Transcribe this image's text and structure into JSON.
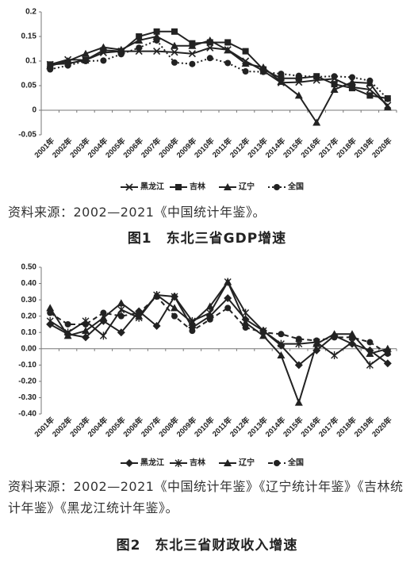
{
  "chart_data": [
    {
      "type": "line",
      "categories": [
        "2001年",
        "2002年",
        "2003年",
        "2004年",
        "2005年",
        "2006年",
        "2007年",
        "2008年",
        "2009年",
        "2010年",
        "2011年",
        "2012年",
        "2013年",
        "2014年",
        "2015年",
        "2016年",
        "2017年",
        "2018年",
        "2019年",
        "2020年"
      ],
      "ylim": [
        -0.05,
        0.2
      ],
      "yticks": [
        -0.05,
        0,
        0.05,
        0.1,
        0.15,
        0.2
      ],
      "grid": false,
      "series": [
        {
          "name": "黑龙江",
          "color": "#222222",
          "marker": "x",
          "dash": "solid",
          "values": [
            0.093,
            0.103,
            0.102,
            0.117,
            0.12,
            0.12,
            0.12,
            0.118,
            0.115,
            0.127,
            0.123,
            0.1,
            0.08,
            0.056,
            0.057,
            0.061,
            0.064,
            0.047,
            0.042,
            0.01
          ]
        },
        {
          "name": "吉林",
          "color": "#222222",
          "marker": "square",
          "dash": "solid",
          "values": [
            0.093,
            0.095,
            0.102,
            0.122,
            0.12,
            0.15,
            0.16,
            0.16,
            0.136,
            0.138,
            0.138,
            0.12,
            0.083,
            0.065,
            0.065,
            0.069,
            0.053,
            0.045,
            0.03,
            0.024
          ]
        },
        {
          "name": "辽宁",
          "color": "#222222",
          "marker": "triangle",
          "dash": "solid",
          "values": [
            0.09,
            0.1,
            0.115,
            0.128,
            0.123,
            0.142,
            0.15,
            0.131,
            0.131,
            0.142,
            0.122,
            0.095,
            0.087,
            0.058,
            0.03,
            -0.025,
            0.042,
            0.057,
            0.055,
            0.006
          ]
        },
        {
          "name": "全国",
          "color": "#222222",
          "marker": "circle",
          "dash": "dotted",
          "values": [
            0.083,
            0.091,
            0.1,
            0.101,
            0.114,
            0.127,
            0.142,
            0.097,
            0.094,
            0.106,
            0.096,
            0.079,
            0.078,
            0.074,
            0.07,
            0.068,
            0.069,
            0.067,
            0.06,
            0.023
          ]
        }
      ]
    },
    {
      "type": "line",
      "categories": [
        "2001年",
        "2002年",
        "2003年",
        "2004年",
        "2005年",
        "2006年",
        "2007年",
        "2008年",
        "2009年",
        "2010年",
        "2011年",
        "2012年",
        "2013年",
        "2014年",
        "2015年",
        "2016年",
        "2017年",
        "2018年",
        "2019年",
        "2020年"
      ],
      "ylim": [
        -0.4,
        0.5
      ],
      "yticks": [
        {
          "value": -0.4,
          "label": "-0.40"
        },
        {
          "value": -0.3,
          "label": "-0.30"
        },
        {
          "value": -0.2,
          "label": "-0.20"
        },
        {
          "value": -0.1,
          "label": "-0.10"
        },
        {
          "value": 0,
          "label": "0.00"
        },
        {
          "value": 0.1,
          "label": "0.10"
        },
        {
          "value": 0.2,
          "label": "0.20"
        },
        {
          "value": 0.3,
          "label": "0.30"
        },
        {
          "value": 0.4,
          "label": "0.40"
        },
        {
          "value": 0.5,
          "label": "0.50"
        }
      ],
      "grid": false,
      "series": [
        {
          "name": "黑龙江",
          "color": "#222222",
          "marker": "diamond",
          "dash": "solid",
          "values": [
            0.15,
            0.09,
            0.07,
            0.17,
            0.1,
            0.23,
            0.14,
            0.32,
            0.13,
            0.2,
            0.31,
            0.18,
            0.11,
            0.02,
            -0.1,
            -0.01,
            0.08,
            0.03,
            -0.01,
            -0.09
          ]
        },
        {
          "name": "吉林",
          "color": "#222222",
          "marker": "star",
          "dash": "solid",
          "values": [
            0.17,
            0.1,
            0.17,
            0.08,
            0.24,
            0.19,
            0.33,
            0.32,
            0.17,
            0.22,
            0.41,
            0.22,
            0.11,
            0.03,
            0.03,
            0.04,
            -0.04,
            0.04,
            -0.1,
            -0.02
          ]
        },
        {
          "name": "辽宁",
          "color": "#222222",
          "marker": "triangle",
          "dash": "solid",
          "values": [
            0.25,
            0.08,
            0.11,
            0.19,
            0.28,
            0.2,
            0.33,
            0.25,
            0.16,
            0.26,
            0.41,
            0.16,
            0.08,
            -0.04,
            -0.33,
            0.03,
            0.09,
            0.09,
            -0.03,
            0
          ]
        },
        {
          "name": "全国",
          "color": "#222222",
          "marker": "circle",
          "dash": "dashed",
          "values": [
            0.22,
            0.15,
            0.15,
            0.22,
            0.2,
            0.22,
            0.32,
            0.2,
            0.11,
            0.18,
            0.25,
            0.13,
            0.1,
            0.09,
            0.06,
            0.05,
            0.07,
            0.07,
            0.04,
            -0.03
          ]
        }
      ]
    }
  ],
  "document": {
    "source_1": "资料来源：2002—2021《中国统计年鉴》。",
    "caption_1": "图1　东北三省GDP增速",
    "source_2": "资料来源：2002—2021《中国统计年鉴》《辽宁统计年鉴》《吉林统计年鉴》《黑龙江统计年鉴》。",
    "caption_2": "图2　东北三省财政收入增速"
  }
}
